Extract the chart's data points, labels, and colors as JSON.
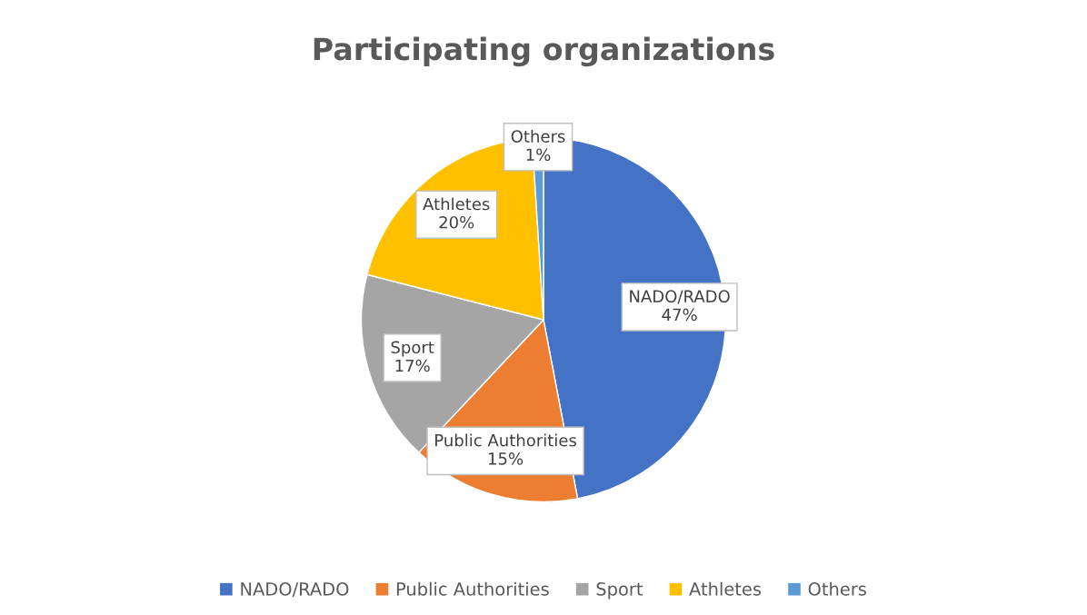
{
  "chart_data": {
    "type": "pie",
    "title": "Participating organizations",
    "categories": [
      "NADO/RADO",
      "Public Authorities",
      "Sport",
      "Athletes",
      "Others"
    ],
    "values": [
      47,
      15,
      17,
      20,
      1
    ],
    "colors": [
      "#4472c4",
      "#ed7d31",
      "#a5a5a5",
      "#ffc000",
      "#5b9bd5"
    ],
    "value_labels": [
      "47%",
      "15%",
      "17%",
      "20%",
      "1%"
    ],
    "legend": "bottom"
  }
}
